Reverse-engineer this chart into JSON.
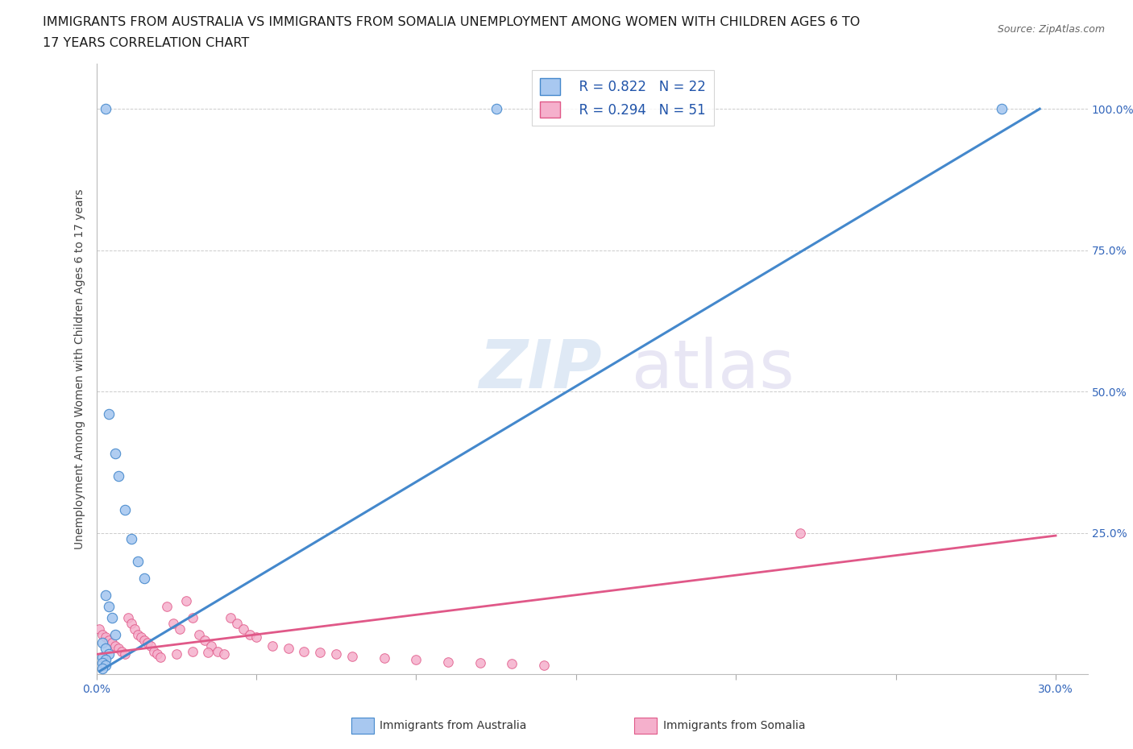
{
  "title_line1": "IMMIGRANTS FROM AUSTRALIA VS IMMIGRANTS FROM SOMALIA UNEMPLOYMENT AMONG WOMEN WITH CHILDREN AGES 6 TO",
  "title_line2": "17 YEARS CORRELATION CHART",
  "source_text": "Source: ZipAtlas.com",
  "ylabel": "Unemployment Among Women with Children Ages 6 to 17 years",
  "xlim": [
    0.0,
    0.31
  ],
  "ylim": [
    0.0,
    1.08
  ],
  "background_color": "#ffffff",
  "grid_color": "#cccccc",
  "legend_R_aus": "R = 0.822",
  "legend_N_aus": "N = 22",
  "legend_R_som": "R = 0.294",
  "legend_N_som": "N = 51",
  "aus_color": "#a8c8f0",
  "aus_edge_color": "#4488cc",
  "som_color": "#f5b0cc",
  "som_edge_color": "#e05888",
  "aus_scatter_x": [
    0.003,
    0.125,
    0.283,
    0.004,
    0.006,
    0.007,
    0.009,
    0.011,
    0.013,
    0.015,
    0.003,
    0.004,
    0.005,
    0.006,
    0.002,
    0.003,
    0.004,
    0.002,
    0.003,
    0.002,
    0.003,
    0.002
  ],
  "aus_scatter_y": [
    1.0,
    1.0,
    1.0,
    0.46,
    0.39,
    0.35,
    0.29,
    0.24,
    0.2,
    0.17,
    0.14,
    0.12,
    0.1,
    0.07,
    0.055,
    0.045,
    0.035,
    0.03,
    0.025,
    0.02,
    0.015,
    0.01
  ],
  "som_scatter_x": [
    0.001,
    0.002,
    0.003,
    0.004,
    0.005,
    0.006,
    0.007,
    0.008,
    0.009,
    0.01,
    0.011,
    0.012,
    0.013,
    0.014,
    0.015,
    0.016,
    0.017,
    0.018,
    0.019,
    0.02,
    0.022,
    0.024,
    0.026,
    0.028,
    0.03,
    0.032,
    0.034,
    0.036,
    0.038,
    0.04,
    0.042,
    0.044,
    0.046,
    0.048,
    0.05,
    0.055,
    0.06,
    0.065,
    0.07,
    0.075,
    0.08,
    0.09,
    0.1,
    0.11,
    0.12,
    0.13,
    0.14,
    0.22,
    0.03,
    0.025,
    0.035
  ],
  "som_scatter_y": [
    0.08,
    0.07,
    0.065,
    0.06,
    0.055,
    0.05,
    0.045,
    0.04,
    0.035,
    0.1,
    0.09,
    0.08,
    0.07,
    0.065,
    0.06,
    0.055,
    0.05,
    0.04,
    0.035,
    0.03,
    0.12,
    0.09,
    0.08,
    0.13,
    0.1,
    0.07,
    0.06,
    0.05,
    0.04,
    0.035,
    0.1,
    0.09,
    0.08,
    0.07,
    0.065,
    0.05,
    0.045,
    0.04,
    0.038,
    0.035,
    0.032,
    0.028,
    0.025,
    0.022,
    0.02,
    0.018,
    0.015,
    0.25,
    0.04,
    0.035,
    0.038
  ],
  "aus_trendline_x": [
    0.001,
    0.295
  ],
  "aus_trendline_y": [
    0.005,
    1.0
  ],
  "som_trendline_x": [
    0.0,
    0.3
  ],
  "som_trendline_y": [
    0.035,
    0.245
  ],
  "x_tick_positions": [
    0.0,
    0.05,
    0.1,
    0.15,
    0.2,
    0.25,
    0.3
  ],
  "y_tick_positions": [
    0.0,
    0.25,
    0.5,
    0.75,
    1.0
  ],
  "title_fontsize": 11.5,
  "axis_label_fontsize": 10,
  "tick_fontsize": 10,
  "legend_fontsize": 12
}
